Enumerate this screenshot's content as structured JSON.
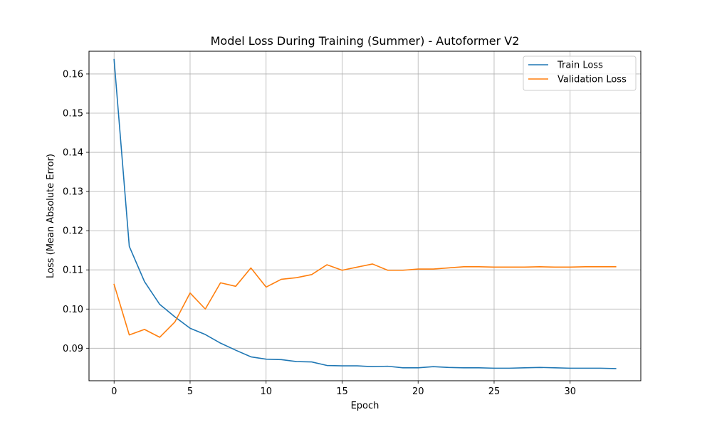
{
  "chart_data": {
    "type": "line",
    "title": "Model Loss During Training (Summer) - Autoformer V2",
    "xlabel": "Epoch",
    "ylabel": "Loss (Mean Absolute Error)",
    "xlim": [
      -1.65,
      34.65
    ],
    "ylim": [
      0.0817,
      0.1658
    ],
    "xticks": [
      0,
      5,
      10,
      15,
      20,
      25,
      30
    ],
    "yticks": [
      0.09,
      0.1,
      0.11,
      0.12,
      0.13,
      0.14,
      0.15,
      0.16
    ],
    "ytick_labels": [
      "0.09",
      "0.10",
      "0.11",
      "0.12",
      "0.13",
      "0.14",
      "0.15",
      "0.16"
    ],
    "grid": true,
    "legend_position": "top-right",
    "x": [
      0,
      1,
      2,
      3,
      4,
      5,
      6,
      7,
      8,
      9,
      10,
      11,
      12,
      13,
      14,
      15,
      16,
      17,
      18,
      19,
      20,
      21,
      22,
      23,
      24,
      25,
      26,
      27,
      28,
      29,
      30,
      31,
      32,
      33
    ],
    "series": [
      {
        "name": "Train Loss",
        "color": "#1f77b4",
        "values": [
          0.1637,
          0.116,
          0.107,
          0.1012,
          0.098,
          0.0951,
          0.0935,
          0.0913,
          0.0895,
          0.0878,
          0.0872,
          0.0871,
          0.0866,
          0.0865,
          0.0856,
          0.0855,
          0.0855,
          0.0853,
          0.0854,
          0.085,
          0.085,
          0.0853,
          0.0851,
          0.085,
          0.085,
          0.0849,
          0.0849,
          0.085,
          0.0851,
          0.085,
          0.0849,
          0.0849,
          0.0849,
          0.0848
        ]
      },
      {
        "name": "Validation Loss",
        "color": "#ff7f0e",
        "values": [
          0.1063,
          0.0934,
          0.0948,
          0.0928,
          0.0967,
          0.1041,
          0.1,
          0.1067,
          0.1058,
          0.1105,
          0.1056,
          0.1076,
          0.108,
          0.1088,
          0.1113,
          0.1099,
          0.1107,
          0.1115,
          0.1099,
          0.1099,
          0.1102,
          0.1102,
          0.1105,
          0.1108,
          0.1108,
          0.1107,
          0.1107,
          0.1107,
          0.1108,
          0.1107,
          0.1107,
          0.1108,
          0.1108,
          0.1108
        ]
      }
    ]
  }
}
